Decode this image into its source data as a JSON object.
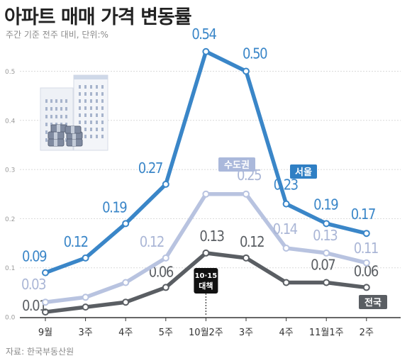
{
  "header": {
    "title": "아파트 매매 가격 변동률",
    "subtitle": "주간 기준 전주 대비, 단위:%"
  },
  "footer": {
    "source": "자료: 한국부동산원"
  },
  "annotation": {
    "line1": "10·15",
    "line2": "대책",
    "at_category": "10월2주"
  },
  "colors": {
    "seoul": "#3a86c8",
    "capital": "#b8c3e0",
    "national": "#5a5e63",
    "label_seoul_bg": "#2f7fc4",
    "label_national_bg": "#5a5e63",
    "label_capital_bg": "#aab8db"
  },
  "chart_data": {
    "type": "line",
    "categories": [
      "9월",
      "3주",
      "4주",
      "5주",
      "10월2주",
      "3주",
      "4주",
      "11월1주",
      "2주"
    ],
    "ylim": [
      0,
      0.6
    ],
    "yticks": [
      "0.0",
      "0.1",
      "0.2",
      "0.3",
      "0.4",
      "0.5"
    ],
    "grid": true,
    "series": [
      {
        "name": "서울",
        "values": [
          0.09,
          0.12,
          0.19,
          0.27,
          0.54,
          0.5,
          0.23,
          0.19,
          0.17
        ],
        "labels": [
          "0.09",
          "0.12",
          "0.19",
          "0.27",
          "0.54",
          "0.50",
          "0.23",
          "0.19",
          "0.17"
        ]
      },
      {
        "name": "수도권",
        "values": [
          0.03,
          0.04,
          0.07,
          0.12,
          0.25,
          0.25,
          0.14,
          0.13,
          0.11
        ],
        "labels": [
          "0.03",
          "",
          "",
          "0.12",
          "",
          "0.25",
          "0.14",
          "0.13",
          "0.11"
        ]
      },
      {
        "name": "전국",
        "values": [
          0.01,
          0.02,
          0.03,
          0.06,
          0.13,
          0.12,
          0.07,
          0.07,
          0.06
        ],
        "labels": [
          "0.01",
          "",
          "",
          "0.06",
          "0.13",
          "0.12",
          "",
          "0.07",
          "0.06"
        ]
      }
    ]
  }
}
